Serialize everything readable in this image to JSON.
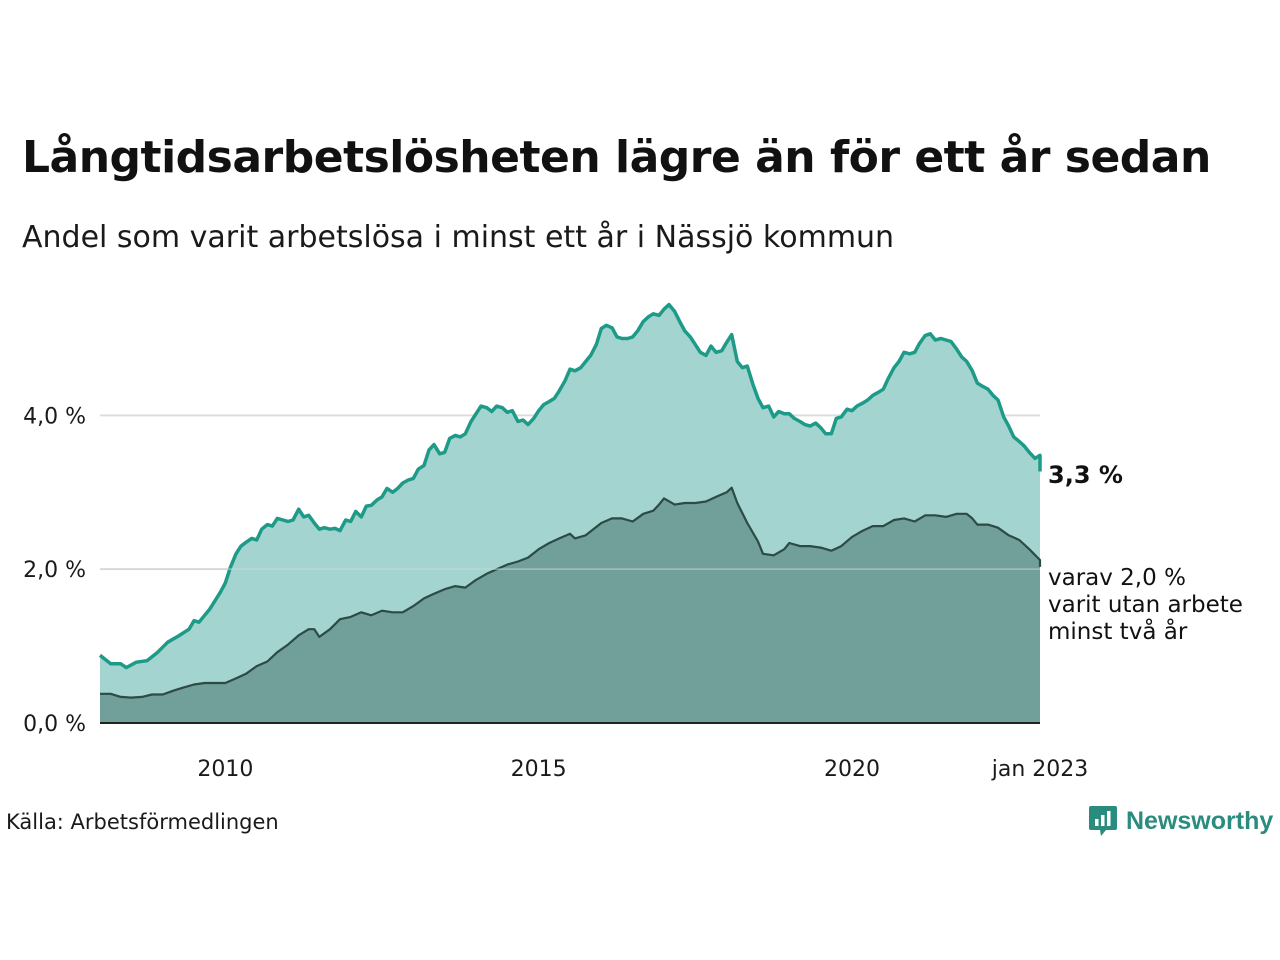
{
  "header": {
    "title": "Långtidsarbetslösheten lägre än för ett år sedan",
    "subtitle": "Andel som varit arbetslösa i minst ett år i Nässjö kommun"
  },
  "footer": {
    "source": "Källa: Arbetsförmedlingen",
    "brand": "Newsworthy"
  },
  "colors": {
    "upper_fill": "#a3d4cf",
    "upper_line": "#1e9a88",
    "lower_fill": "#719f99",
    "lower_line": "#2c4a46",
    "brand": "#2a8c7e"
  },
  "chart_data": {
    "type": "area",
    "x_unit": "year",
    "xlim": [
      2008.0,
      2023.0
    ],
    "ylim": [
      0,
      5.5
    ],
    "y_ticks": [
      {
        "value": 0,
        "label": "0,0 %"
      },
      {
        "value": 2,
        "label": "2,0 %"
      },
      {
        "value": 4,
        "label": "4,0 %"
      }
    ],
    "x_ticks": [
      {
        "value": 2010,
        "label": "2010"
      },
      {
        "value": 2015,
        "label": "2015"
      },
      {
        "value": 2020,
        "label": "2020"
      },
      {
        "value": 2023.0,
        "label": "jan 2023"
      }
    ],
    "grid": true,
    "end_labels": {
      "main": "3,3 %",
      "sub": [
        "varav 2,0 %",
        "varit utan arbete",
        "minst två år"
      ]
    },
    "series": [
      {
        "points": [
          [
            2008.0,
            0.88
          ],
          [
            2008.17,
            0.77
          ],
          [
            2008.33,
            0.77
          ],
          [
            2008.42,
            0.72
          ],
          [
            2008.58,
            0.79
          ],
          [
            2008.75,
            0.81
          ],
          [
            2008.92,
            0.92
          ],
          [
            2009.08,
            1.05
          ],
          [
            2009.25,
            1.13
          ],
          [
            2009.42,
            1.22
          ],
          [
            2009.5,
            1.33
          ],
          [
            2009.58,
            1.31
          ],
          [
            2009.75,
            1.48
          ],
          [
            2009.92,
            1.7
          ],
          [
            2010.0,
            1.82
          ],
          [
            2010.08,
            2.02
          ],
          [
            2010.17,
            2.2
          ],
          [
            2010.25,
            2.3
          ],
          [
            2010.33,
            2.35
          ],
          [
            2010.42,
            2.4
          ],
          [
            2010.5,
            2.38
          ],
          [
            2010.58,
            2.52
          ],
          [
            2010.67,
            2.58
          ],
          [
            2010.75,
            2.56
          ],
          [
            2010.83,
            2.66
          ],
          [
            2010.92,
            2.64
          ],
          [
            2011.0,
            2.62
          ],
          [
            2011.08,
            2.64
          ],
          [
            2011.17,
            2.78
          ],
          [
            2011.25,
            2.68
          ],
          [
            2011.33,
            2.7
          ],
          [
            2011.42,
            2.6
          ],
          [
            2011.5,
            2.52
          ],
          [
            2011.58,
            2.54
          ],
          [
            2011.67,
            2.52
          ],
          [
            2011.75,
            2.53
          ],
          [
            2011.83,
            2.5
          ],
          [
            2011.92,
            2.64
          ],
          [
            2012.0,
            2.62
          ],
          [
            2012.08,
            2.75
          ],
          [
            2012.17,
            2.68
          ],
          [
            2012.25,
            2.82
          ],
          [
            2012.33,
            2.83
          ],
          [
            2012.42,
            2.9
          ],
          [
            2012.5,
            2.94
          ],
          [
            2012.58,
            3.05
          ],
          [
            2012.67,
            3.0
          ],
          [
            2012.75,
            3.05
          ],
          [
            2012.83,
            3.12
          ],
          [
            2012.92,
            3.16
          ],
          [
            2013.0,
            3.18
          ],
          [
            2013.08,
            3.3
          ],
          [
            2013.17,
            3.35
          ],
          [
            2013.25,
            3.55
          ],
          [
            2013.33,
            3.62
          ],
          [
            2013.42,
            3.5
          ],
          [
            2013.5,
            3.52
          ],
          [
            2013.58,
            3.7
          ],
          [
            2013.67,
            3.74
          ],
          [
            2013.75,
            3.72
          ],
          [
            2013.83,
            3.76
          ],
          [
            2013.92,
            3.92
          ],
          [
            2014.0,
            4.02
          ],
          [
            2014.08,
            4.12
          ],
          [
            2014.17,
            4.1
          ],
          [
            2014.25,
            4.05
          ],
          [
            2014.33,
            4.12
          ],
          [
            2014.42,
            4.1
          ],
          [
            2014.5,
            4.04
          ],
          [
            2014.58,
            4.06
          ],
          [
            2014.67,
            3.92
          ],
          [
            2014.75,
            3.94
          ],
          [
            2014.83,
            3.88
          ],
          [
            2014.92,
            3.96
          ],
          [
            2015.0,
            4.06
          ],
          [
            2015.08,
            4.14
          ],
          [
            2015.17,
            4.18
          ],
          [
            2015.25,
            4.22
          ],
          [
            2015.33,
            4.32
          ],
          [
            2015.42,
            4.45
          ],
          [
            2015.5,
            4.6
          ],
          [
            2015.58,
            4.58
          ],
          [
            2015.67,
            4.62
          ],
          [
            2015.75,
            4.7
          ],
          [
            2015.83,
            4.78
          ],
          [
            2015.92,
            4.92
          ],
          [
            2016.0,
            5.13
          ],
          [
            2016.08,
            5.17
          ],
          [
            2016.17,
            5.14
          ],
          [
            2016.25,
            5.02
          ],
          [
            2016.33,
            5.0
          ],
          [
            2016.42,
            5.0
          ],
          [
            2016.5,
            5.02
          ],
          [
            2016.58,
            5.1
          ],
          [
            2016.67,
            5.22
          ],
          [
            2016.75,
            5.28
          ],
          [
            2016.83,
            5.32
          ],
          [
            2016.92,
            5.3
          ],
          [
            2017.0,
            5.38
          ],
          [
            2017.08,
            5.44
          ],
          [
            2017.17,
            5.35
          ],
          [
            2017.25,
            5.22
          ],
          [
            2017.33,
            5.1
          ],
          [
            2017.42,
            5.02
          ],
          [
            2017.5,
            4.92
          ],
          [
            2017.58,
            4.82
          ],
          [
            2017.67,
            4.78
          ],
          [
            2017.75,
            4.9
          ],
          [
            2017.83,
            4.82
          ],
          [
            2017.92,
            4.84
          ],
          [
            2018.0,
            4.95
          ],
          [
            2018.08,
            5.05
          ],
          [
            2018.17,
            4.7
          ],
          [
            2018.25,
            4.62
          ],
          [
            2018.33,
            4.64
          ],
          [
            2018.42,
            4.4
          ],
          [
            2018.5,
            4.22
          ],
          [
            2018.58,
            4.1
          ],
          [
            2018.67,
            4.12
          ],
          [
            2018.75,
            3.98
          ],
          [
            2018.83,
            4.05
          ],
          [
            2018.92,
            4.02
          ],
          [
            2019.0,
            4.02
          ],
          [
            2019.08,
            3.96
          ],
          [
            2019.17,
            3.92
          ],
          [
            2019.25,
            3.88
          ],
          [
            2019.33,
            3.86
          ],
          [
            2019.42,
            3.9
          ],
          [
            2019.5,
            3.84
          ],
          [
            2019.58,
            3.76
          ],
          [
            2019.67,
            3.76
          ],
          [
            2019.75,
            3.96
          ],
          [
            2019.83,
            3.98
          ],
          [
            2019.92,
            4.08
          ],
          [
            2020.0,
            4.06
          ],
          [
            2020.08,
            4.12
          ],
          [
            2020.17,
            4.16
          ],
          [
            2020.25,
            4.2
          ],
          [
            2020.33,
            4.26
          ],
          [
            2020.42,
            4.3
          ],
          [
            2020.5,
            4.34
          ],
          [
            2020.58,
            4.48
          ],
          [
            2020.67,
            4.62
          ],
          [
            2020.75,
            4.7
          ],
          [
            2020.83,
            4.82
          ],
          [
            2020.92,
            4.8
          ],
          [
            2021.0,
            4.82
          ],
          [
            2021.08,
            4.94
          ],
          [
            2021.17,
            5.04
          ],
          [
            2021.25,
            5.06
          ],
          [
            2021.33,
            4.98
          ],
          [
            2021.42,
            5.0
          ],
          [
            2021.5,
            4.98
          ],
          [
            2021.58,
            4.96
          ],
          [
            2021.67,
            4.86
          ],
          [
            2021.75,
            4.76
          ],
          [
            2021.83,
            4.7
          ],
          [
            2021.92,
            4.58
          ],
          [
            2022.0,
            4.42
          ],
          [
            2022.08,
            4.38
          ],
          [
            2022.17,
            4.34
          ],
          [
            2022.25,
            4.26
          ],
          [
            2022.33,
            4.2
          ],
          [
            2022.42,
            3.98
          ],
          [
            2022.5,
            3.86
          ],
          [
            2022.58,
            3.72
          ],
          [
            2022.67,
            3.66
          ],
          [
            2022.75,
            3.6
          ],
          [
            2022.83,
            3.52
          ],
          [
            2022.92,
            3.44
          ],
          [
            2023.0,
            3.48
          ],
          [
            2023.0,
            3.27
          ]
        ]
      },
      {
        "points": [
          [
            2008.0,
            0.38
          ],
          [
            2008.17,
            0.38
          ],
          [
            2008.33,
            0.34
          ],
          [
            2008.5,
            0.33
          ],
          [
            2008.67,
            0.34
          ],
          [
            2008.83,
            0.37
          ],
          [
            2009.0,
            0.37
          ],
          [
            2009.17,
            0.42
          ],
          [
            2009.33,
            0.46
          ],
          [
            2009.5,
            0.5
          ],
          [
            2009.67,
            0.52
          ],
          [
            2009.83,
            0.52
          ],
          [
            2010.0,
            0.52
          ],
          [
            2010.17,
            0.58
          ],
          [
            2010.33,
            0.64
          ],
          [
            2010.5,
            0.74
          ],
          [
            2010.67,
            0.8
          ],
          [
            2010.83,
            0.92
          ],
          [
            2011.0,
            1.02
          ],
          [
            2011.17,
            1.14
          ],
          [
            2011.33,
            1.22
          ],
          [
            2011.42,
            1.22
          ],
          [
            2011.5,
            1.12
          ],
          [
            2011.67,
            1.22
          ],
          [
            2011.83,
            1.35
          ],
          [
            2012.0,
            1.38
          ],
          [
            2012.17,
            1.44
          ],
          [
            2012.33,
            1.4
          ],
          [
            2012.5,
            1.46
          ],
          [
            2012.67,
            1.44
          ],
          [
            2012.83,
            1.44
          ],
          [
            2013.0,
            1.52
          ],
          [
            2013.17,
            1.62
          ],
          [
            2013.33,
            1.68
          ],
          [
            2013.5,
            1.74
          ],
          [
            2013.67,
            1.78
          ],
          [
            2013.83,
            1.76
          ],
          [
            2014.0,
            1.86
          ],
          [
            2014.17,
            1.94
          ],
          [
            2014.33,
            2.0
          ],
          [
            2014.5,
            2.06
          ],
          [
            2014.67,
            2.1
          ],
          [
            2014.83,
            2.15
          ],
          [
            2015.0,
            2.26
          ],
          [
            2015.17,
            2.34
          ],
          [
            2015.33,
            2.4
          ],
          [
            2015.5,
            2.46
          ],
          [
            2015.58,
            2.4
          ],
          [
            2015.75,
            2.44
          ],
          [
            2016.0,
            2.6
          ],
          [
            2016.17,
            2.66
          ],
          [
            2016.33,
            2.66
          ],
          [
            2016.5,
            2.62
          ],
          [
            2016.67,
            2.72
          ],
          [
            2016.83,
            2.76
          ],
          [
            2016.92,
            2.84
          ],
          [
            2017.0,
            2.92
          ],
          [
            2017.17,
            2.84
          ],
          [
            2017.33,
            2.86
          ],
          [
            2017.5,
            2.86
          ],
          [
            2017.67,
            2.88
          ],
          [
            2017.83,
            2.94
          ],
          [
            2018.0,
            3.0
          ],
          [
            2018.08,
            3.06
          ],
          [
            2018.17,
            2.86
          ],
          [
            2018.33,
            2.6
          ],
          [
            2018.5,
            2.36
          ],
          [
            2018.58,
            2.2
          ],
          [
            2018.75,
            2.18
          ],
          [
            2018.92,
            2.26
          ],
          [
            2019.0,
            2.34
          ],
          [
            2019.17,
            2.3
          ],
          [
            2019.33,
            2.3
          ],
          [
            2019.5,
            2.28
          ],
          [
            2019.67,
            2.24
          ],
          [
            2019.83,
            2.3
          ],
          [
            2020.0,
            2.42
          ],
          [
            2020.17,
            2.5
          ],
          [
            2020.33,
            2.56
          ],
          [
            2020.5,
            2.56
          ],
          [
            2020.67,
            2.64
          ],
          [
            2020.83,
            2.66
          ],
          [
            2021.0,
            2.62
          ],
          [
            2021.17,
            2.7
          ],
          [
            2021.33,
            2.7
          ],
          [
            2021.5,
            2.68
          ],
          [
            2021.67,
            2.72
          ],
          [
            2021.83,
            2.72
          ],
          [
            2021.92,
            2.66
          ],
          [
            2022.0,
            2.58
          ],
          [
            2022.17,
            2.58
          ],
          [
            2022.33,
            2.54
          ],
          [
            2022.5,
            2.44
          ],
          [
            2022.67,
            2.38
          ],
          [
            2022.83,
            2.26
          ],
          [
            2023.0,
            2.12
          ],
          [
            2023.0,
            2.03
          ]
        ]
      }
    ]
  }
}
